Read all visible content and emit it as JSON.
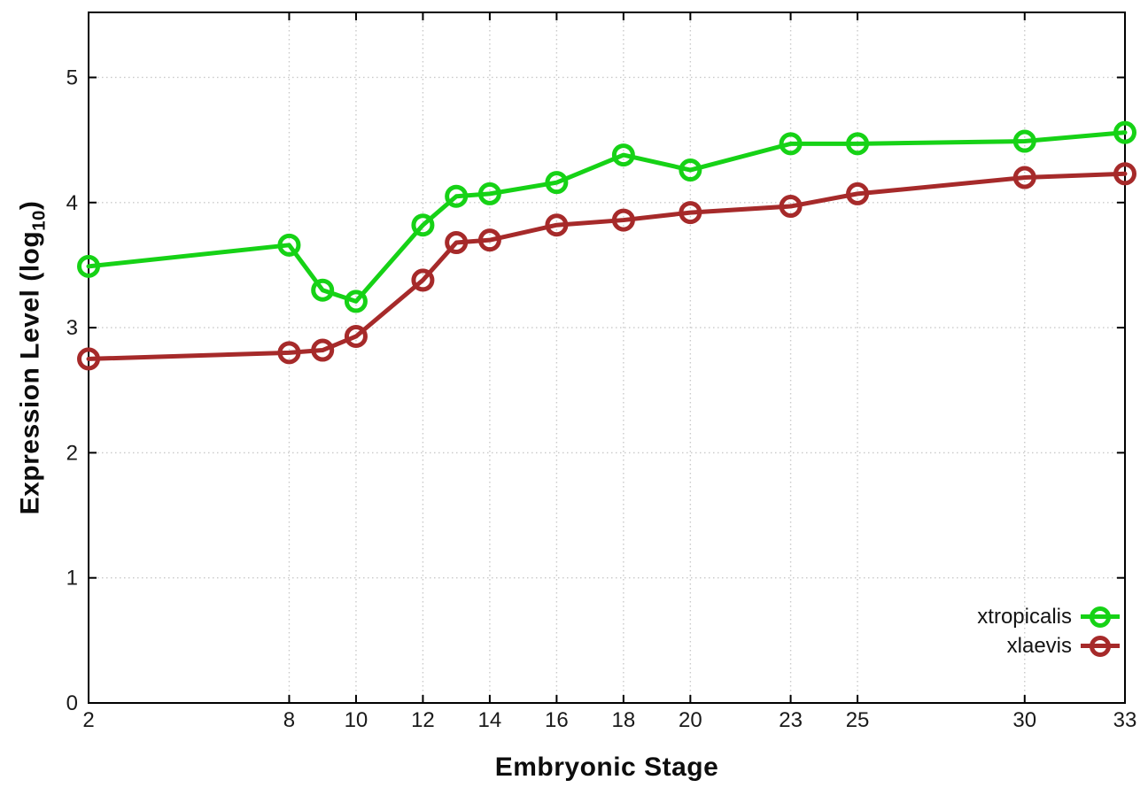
{
  "chart_data": {
    "type": "line",
    "title": "",
    "xlabel": "Embryonic Stage",
    "ylabel": {
      "text": "Expression Level (log",
      "sub": "10",
      "end": ")"
    },
    "x": [
      2,
      8,
      9,
      10,
      12,
      13,
      14,
      16,
      18,
      20,
      23,
      25,
      30,
      33
    ],
    "series": [
      {
        "name": "xtropicalis",
        "color": "#16d216",
        "values": [
          3.49,
          3.66,
          3.3,
          3.21,
          3.82,
          4.05,
          4.07,
          4.16,
          4.38,
          4.26,
          4.47,
          4.47,
          4.49,
          4.56
        ]
      },
      {
        "name": "xlaevis",
        "color": "#a62a2a",
        "values": [
          2.75,
          2.8,
          2.82,
          2.93,
          3.38,
          3.68,
          3.7,
          3.82,
          3.86,
          3.92,
          3.97,
          4.07,
          4.2,
          4.23
        ]
      }
    ],
    "xticks": [
      2,
      8,
      10,
      12,
      14,
      16,
      18,
      20,
      23,
      25,
      30,
      33
    ],
    "yticks": [
      0,
      1,
      2,
      3,
      4,
      5
    ],
    "xlim": [
      2,
      33
    ],
    "ylim": [
      0,
      5.52
    ],
    "grid": true,
    "legend_position": "inside-bottom-right",
    "marker": "open-circle",
    "line_width": 5,
    "colors": {
      "axis": "#000000",
      "grid": "#c9c9c9",
      "text": "#1a1a1a",
      "background": "#ffffff"
    }
  }
}
